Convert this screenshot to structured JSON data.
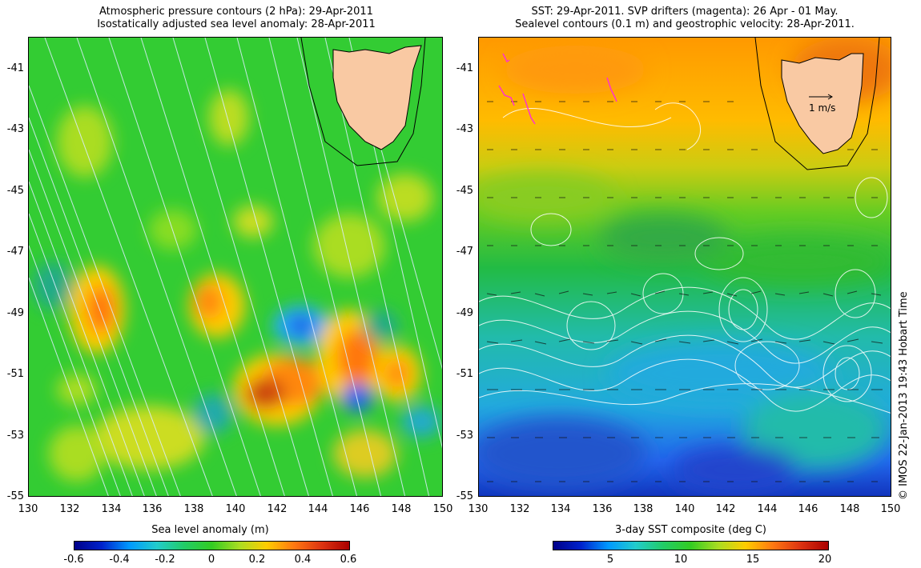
{
  "left": {
    "title_line1": "Atmospheric pressure contours (2 hPa): 29-Apr-2011",
    "title_line2": "Isostatically adjusted sea level anomaly: 28-Apr-2011",
    "colorbar_label": "Sea level anomaly (m)",
    "colorbar_ticks": [
      "-0.6",
      "-0.4",
      "-0.2",
      "0",
      "0.2",
      "0.4",
      "0.6"
    ]
  },
  "right": {
    "title_line1": "SST: 29-Apr-2011. SVP drifters (magenta): 26 Apr - 01 May.",
    "title_line2": "Sealevel contours (0.1 m) and geostrophic velocity: 28-Apr-2011.",
    "colorbar_label": "3-day SST composite (deg C)",
    "colorbar_ticks": [
      "5",
      "10",
      "15",
      "20"
    ],
    "scale_label": "1 m/s"
  },
  "axes": {
    "y_ticks": [
      "-41",
      "-43",
      "-45",
      "-47",
      "-49",
      "-51",
      "-53",
      "-55"
    ],
    "x_ticks": [
      "130",
      "132",
      "134",
      "136",
      "138",
      "140",
      "142",
      "144",
      "146",
      "148",
      "150"
    ]
  },
  "credit": "© IMOS 22-Jan-2013 19:43 Hobart Time",
  "colors": {
    "land": "#f9c9a3",
    "ocean_green": "#22cc22",
    "sst_orange": "#ff9900",
    "sst_blue": "#2288ff",
    "drifters": "#ff33cc"
  }
}
